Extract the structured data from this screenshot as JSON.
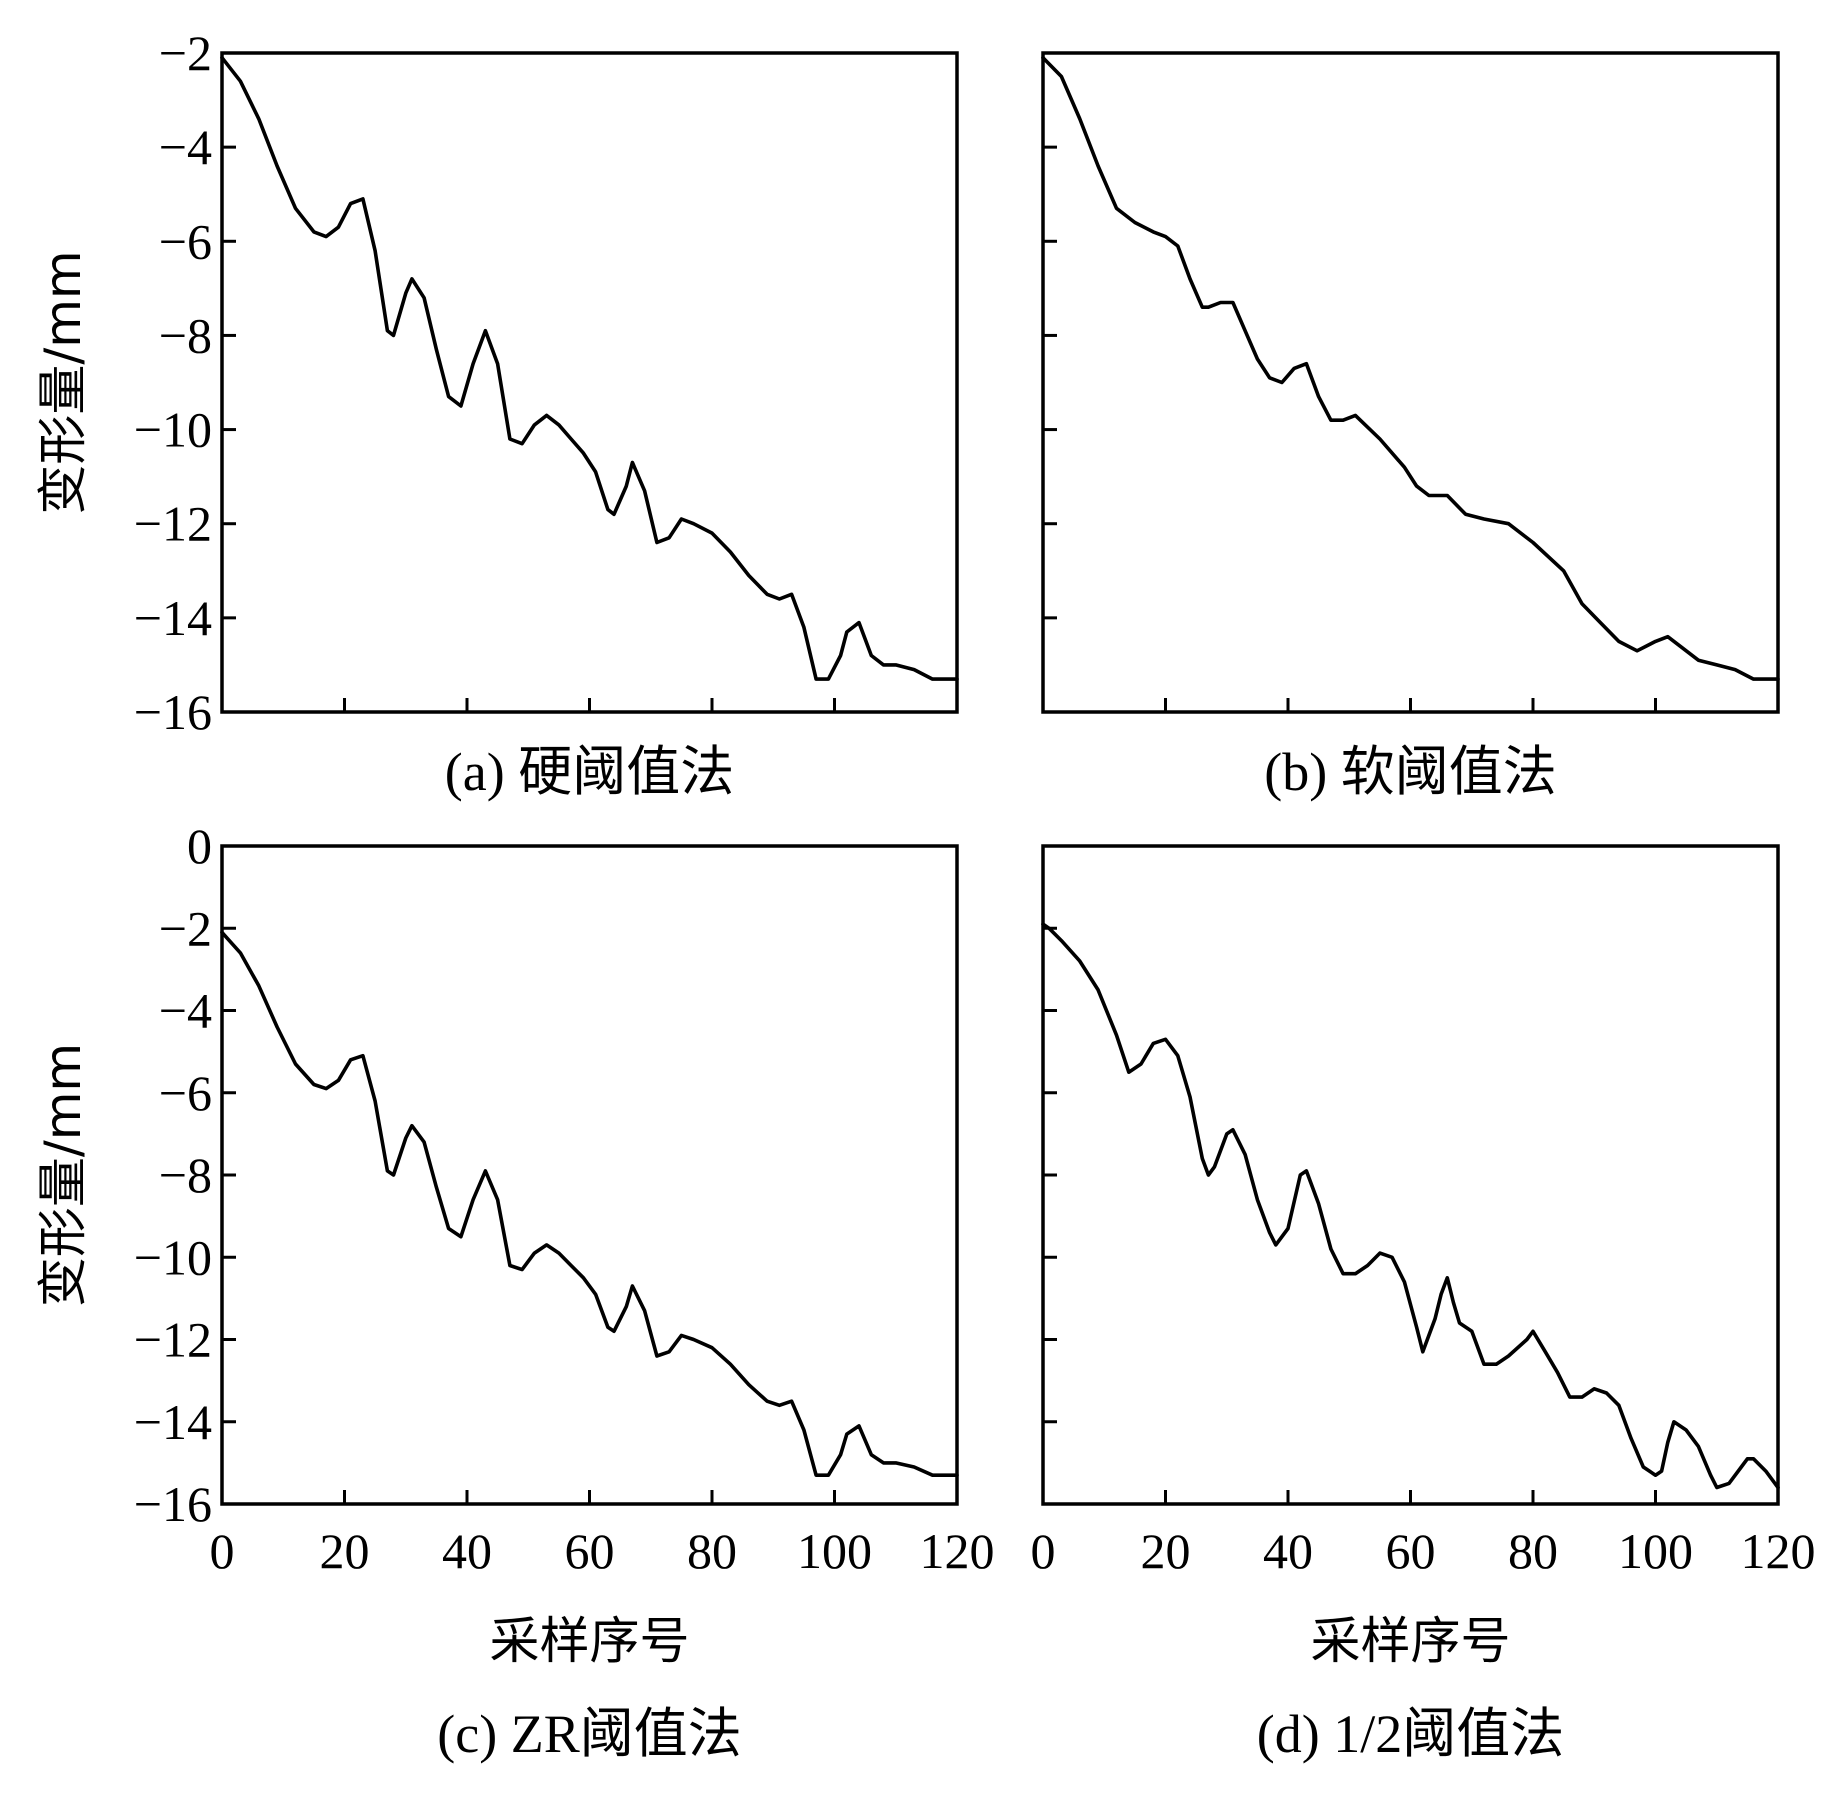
{
  "chart_data": [
    {
      "type": "line",
      "id": "a",
      "title": "(a) 硬阈值法",
      "xlabel": "",
      "ylabel": "变形量/mm",
      "xlim": [
        0,
        120
      ],
      "ylim": [
        -16,
        -2
      ],
      "xticks": [
        20,
        40,
        60,
        80,
        100
      ],
      "xtick_labels": [],
      "yticks": [
        -2,
        -4,
        -6,
        -8,
        -10,
        -12,
        -14,
        -16
      ],
      "ytick_labels": [
        "−2",
        "−4",
        "−6",
        "−8",
        "−10",
        "−12",
        "−14",
        "−16"
      ],
      "series": [
        {
          "name": "硬阈值法",
          "x": [
            0,
            3,
            6,
            9,
            12,
            15,
            17,
            19,
            21,
            23,
            25,
            27,
            28,
            30,
            31,
            33,
            35,
            37,
            39,
            41,
            43,
            45,
            47,
            49,
            51,
            53,
            55,
            57,
            59,
            61,
            63,
            64,
            66,
            67,
            69,
            71,
            73,
            75,
            77,
            80,
            83,
            86,
            89,
            91,
            93,
            95,
            97,
            99,
            101,
            102,
            104,
            106,
            108,
            110,
            113,
            116,
            118,
            120
          ],
          "y": [
            -2.1,
            -2.6,
            -3.4,
            -4.4,
            -5.3,
            -5.8,
            -5.9,
            -5.7,
            -5.2,
            -5.1,
            -6.2,
            -7.9,
            -8.0,
            -7.1,
            -6.8,
            -7.2,
            -8.3,
            -9.3,
            -9.5,
            -8.6,
            -7.9,
            -8.6,
            -10.2,
            -10.3,
            -9.9,
            -9.7,
            -9.9,
            -10.2,
            -10.5,
            -10.9,
            -11.7,
            -11.8,
            -11.2,
            -10.7,
            -11.3,
            -12.4,
            -12.3,
            -11.9,
            -12.0,
            -12.2,
            -12.6,
            -13.1,
            -13.5,
            -13.6,
            -13.5,
            -14.2,
            -15.3,
            -15.3,
            -14.8,
            -14.3,
            -14.1,
            -14.8,
            -15.0,
            -15.0,
            -15.1,
            -15.3,
            -15.3,
            -15.3
          ]
        }
      ]
    },
    {
      "type": "line",
      "id": "b",
      "title": "(b) 软阈值法",
      "xlabel": "",
      "ylabel": "",
      "xlim": [
        0,
        120
      ],
      "ylim": [
        -16,
        -2
      ],
      "xticks": [
        20,
        40,
        60,
        80,
        100
      ],
      "xtick_labels": [],
      "yticks": [
        -4,
        -6,
        -8,
        -10,
        -12,
        -14
      ],
      "ytick_labels": [],
      "series": [
        {
          "name": "软阈值法",
          "x": [
            0,
            3,
            6,
            9,
            12,
            15,
            18,
            20,
            22,
            24,
            26,
            27,
            29,
            31,
            33,
            35,
            37,
            39,
            41,
            43,
            45,
            47,
            49,
            51,
            55,
            59,
            61,
            63,
            66,
            69,
            72,
            76,
            80,
            85,
            88,
            91,
            94,
            97,
            100,
            102,
            104,
            107,
            110,
            113,
            116,
            118,
            120
          ],
          "y": [
            -2.1,
            -2.5,
            -3.4,
            -4.4,
            -5.3,
            -5.6,
            -5.8,
            -5.9,
            -6.1,
            -6.8,
            -7.4,
            -7.4,
            -7.3,
            -7.3,
            -7.9,
            -8.5,
            -8.9,
            -9.0,
            -8.7,
            -8.6,
            -9.3,
            -9.8,
            -9.8,
            -9.7,
            -10.2,
            -10.8,
            -11.2,
            -11.4,
            -11.4,
            -11.8,
            -11.9,
            -12.0,
            -12.4,
            -13.0,
            -13.7,
            -14.1,
            -14.5,
            -14.7,
            -14.5,
            -14.4,
            -14.6,
            -14.9,
            -15.0,
            -15.1,
            -15.3,
            -15.3,
            -15.3
          ]
        }
      ]
    },
    {
      "type": "line",
      "id": "c",
      "title": "(c) ZR阈值法",
      "xlabel": "采样序号",
      "ylabel": "变形量/mm",
      "xlim": [
        0,
        120
      ],
      "ylim": [
        -16,
        0
      ],
      "xticks": [
        0,
        20,
        40,
        60,
        80,
        100,
        120
      ],
      "xtick_labels": [
        "0",
        "20",
        "40",
        "60",
        "80",
        "100",
        "120"
      ],
      "yticks": [
        0,
        -2,
        -4,
        -6,
        -8,
        -10,
        -12,
        -14,
        -16
      ],
      "ytick_labels": [
        "0",
        "−2",
        "−4",
        "−6",
        "−8",
        "−10",
        "−12",
        "−14",
        "−16"
      ],
      "series": [
        {
          "name": "ZR阈值法",
          "x": [
            0,
            3,
            6,
            9,
            12,
            15,
            17,
            19,
            21,
            23,
            25,
            27,
            28,
            30,
            31,
            33,
            35,
            37,
            39,
            41,
            43,
            45,
            47,
            49,
            51,
            53,
            55,
            57,
            59,
            61,
            63,
            64,
            66,
            67,
            69,
            71,
            73,
            75,
            77,
            80,
            83,
            86,
            89,
            91,
            93,
            95,
            97,
            99,
            101,
            102,
            104,
            106,
            108,
            110,
            113,
            116,
            118,
            120
          ],
          "y": [
            -2.1,
            -2.6,
            -3.4,
            -4.4,
            -5.3,
            -5.8,
            -5.9,
            -5.7,
            -5.2,
            -5.1,
            -6.2,
            -7.9,
            -8.0,
            -7.1,
            -6.8,
            -7.2,
            -8.3,
            -9.3,
            -9.5,
            -8.6,
            -7.9,
            -8.6,
            -10.2,
            -10.3,
            -9.9,
            -9.7,
            -9.9,
            -10.2,
            -10.5,
            -10.9,
            -11.7,
            -11.8,
            -11.2,
            -10.7,
            -11.3,
            -12.4,
            -12.3,
            -11.9,
            -12.0,
            -12.2,
            -12.6,
            -13.1,
            -13.5,
            -13.6,
            -13.5,
            -14.2,
            -15.3,
            -15.3,
            -14.8,
            -14.3,
            -14.1,
            -14.8,
            -15.0,
            -15.0,
            -15.1,
            -15.3,
            -15.3,
            -15.3
          ]
        }
      ]
    },
    {
      "type": "line",
      "id": "d",
      "title": "(d) 1/2阈值法",
      "xlabel": "采样序号",
      "ylabel": "",
      "xlim": [
        0,
        120
      ],
      "ylim": [
        -16,
        0
      ],
      "xticks": [
        0,
        20,
        40,
        60,
        80,
        100,
        120
      ],
      "xtick_labels": [
        "0",
        "20",
        "40",
        "60",
        "80",
        "100",
        "120"
      ],
      "yticks": [
        -2,
        -4,
        -6,
        -8,
        -10,
        -12,
        -14
      ],
      "ytick_labels": [],
      "series": [
        {
          "name": "1/2阈值法",
          "x": [
            0,
            1,
            3,
            6,
            9,
            12,
            14,
            16,
            18,
            20,
            22,
            24,
            26,
            27,
            28,
            30,
            31,
            33,
            35,
            37,
            38,
            40,
            42,
            43,
            45,
            47,
            49,
            51,
            53,
            55,
            57,
            59,
            61,
            62,
            64,
            65,
            66,
            67,
            68,
            70,
            72,
            74,
            76,
            79,
            80,
            82,
            84,
            86,
            88,
            90,
            92,
            94,
            96,
            98,
            100,
            101,
            102,
            103,
            105,
            107,
            109,
            110,
            112,
            114,
            115,
            116,
            118,
            120
          ],
          "y": [
            -1.9,
            -2.0,
            -2.3,
            -2.8,
            -3.5,
            -4.6,
            -5.5,
            -5.3,
            -4.8,
            -4.7,
            -5.1,
            -6.1,
            -7.6,
            -8.0,
            -7.8,
            -7.0,
            -6.9,
            -7.5,
            -8.6,
            -9.4,
            -9.7,
            -9.3,
            -8.0,
            -7.9,
            -8.7,
            -9.8,
            -10.4,
            -10.4,
            -10.2,
            -9.9,
            -10.0,
            -10.6,
            -11.7,
            -12.3,
            -11.5,
            -10.9,
            -10.5,
            -11.1,
            -11.6,
            -11.8,
            -12.6,
            -12.6,
            -12.4,
            -12.0,
            -11.8,
            -12.3,
            -12.8,
            -13.4,
            -13.4,
            -13.2,
            -13.3,
            -13.6,
            -14.4,
            -15.1,
            -15.3,
            -15.2,
            -14.5,
            -14.0,
            -14.2,
            -14.6,
            -15.3,
            -15.6,
            -15.5,
            -15.1,
            -14.9,
            -14.9,
            -15.2,
            -15.6
          ]
        }
      ]
    }
  ]
}
